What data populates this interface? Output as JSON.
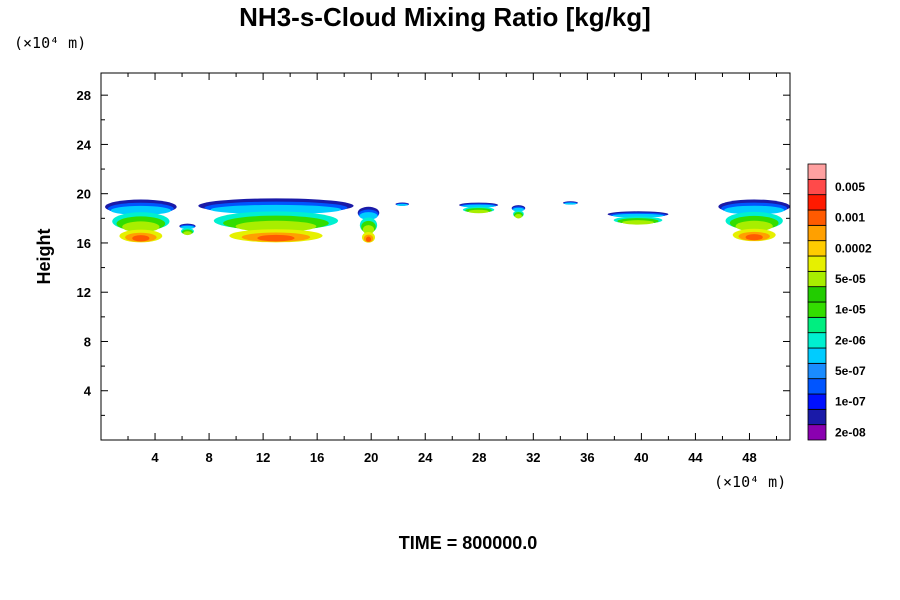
{
  "chart_data": {
    "type": "heatmap",
    "title": "NH3-s-Cloud Mixing Ratio [kg/kg]",
    "ylabel": "Height",
    "y_unit": "(×10⁴ m)",
    "x_unit": "(×10⁴ m)",
    "xlim": [
      0,
      51
    ],
    "ylim": [
      0,
      29.8
    ],
    "x_ticks": [
      4,
      8,
      12,
      16,
      20,
      24,
      28,
      32,
      36,
      40,
      44,
      48
    ],
    "y_ticks": [
      4,
      8,
      12,
      16,
      20,
      24,
      28
    ],
    "color_levels": [
      {
        "label": "2e-08",
        "color": "#8a00b0"
      },
      {
        "label": "",
        "color": "#1a1aa8"
      },
      {
        "label": "1e-07",
        "color": "#0010ff"
      },
      {
        "label": "",
        "color": "#0055ff"
      },
      {
        "label": "5e-07",
        "color": "#1a8cff"
      },
      {
        "label": "",
        "color": "#00ccff"
      },
      {
        "label": "2e-06",
        "color": "#00f0d0"
      },
      {
        "label": "",
        "color": "#00ee80"
      },
      {
        "label": "1e-05",
        "color": "#33dd00"
      },
      {
        "label": "",
        "color": "#22cc00"
      },
      {
        "label": "5e-05",
        "color": "#a8ee00"
      },
      {
        "label": "",
        "color": "#e6f000"
      },
      {
        "label": "0.0002",
        "color": "#ffcc00"
      },
      {
        "label": "",
        "color": "#ffa000"
      },
      {
        "label": "0.001",
        "color": "#ff5a00"
      },
      {
        "label": "",
        "color": "#ff1a00"
      },
      {
        "label": "0.005",
        "color": "#ff4a4a"
      },
      {
        "label": "",
        "color": "#ffa0a0"
      }
    ],
    "cloud_regions": [
      {
        "x0": 0.3,
        "x1": 5.6,
        "y0": 15.9,
        "y1": 19.6
      },
      {
        "x0": 5.8,
        "x1": 7.0,
        "y0": 16.3,
        "y1": 17.6
      },
      {
        "x0": 7.2,
        "x1": 18.7,
        "y0": 15.9,
        "y1": 19.7
      },
      {
        "x0": 19.0,
        "x1": 20.6,
        "y0": 15.9,
        "y1": 19.0
      },
      {
        "x0": 21.8,
        "x1": 22.8,
        "y0": 18.5,
        "y1": 19.3
      },
      {
        "x0": 26.5,
        "x1": 29.4,
        "y0": 18.1,
        "y1": 19.3
      },
      {
        "x0": 30.4,
        "x1": 31.4,
        "y0": 17.6,
        "y1": 19.1
      },
      {
        "x0": 34.2,
        "x1": 35.3,
        "y0": 18.6,
        "y1": 19.4
      },
      {
        "x0": 37.5,
        "x1": 42.0,
        "y0": 17.1,
        "y1": 18.6
      },
      {
        "x0": 45.7,
        "x1": 51.0,
        "y0": 16.0,
        "y1": 19.6
      }
    ],
    "time_label": "TIME = 800000.0"
  }
}
